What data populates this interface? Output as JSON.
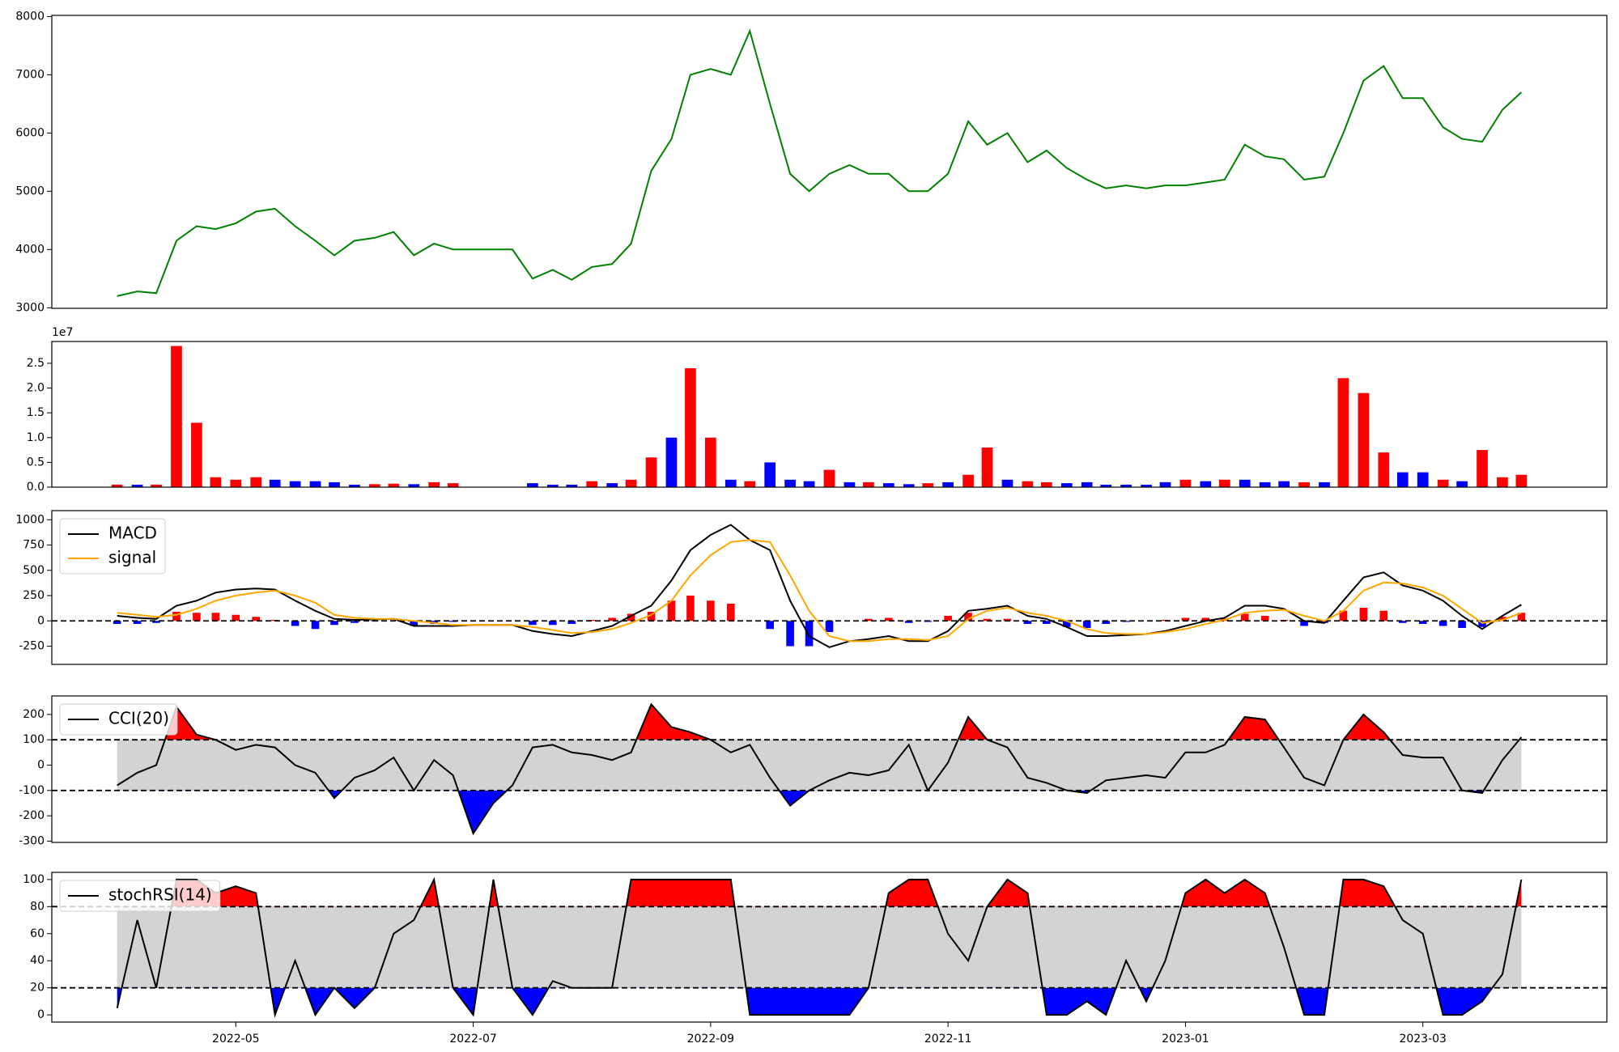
{
  "chart_data": [
    {
      "type": "line",
      "color": "green",
      "x": [
        3,
        3.17,
        3.33,
        3.5,
        3.67,
        3.83,
        4,
        4.17,
        4.33,
        4.5,
        4.67,
        4.83,
        5,
        5.17,
        5.33,
        5.5,
        5.67,
        5.83,
        6,
        6.17,
        6.33,
        6.5,
        6.67,
        6.83,
        7,
        7.17,
        7.33,
        7.5,
        7.67,
        7.83,
        8,
        8.17,
        8.33,
        8.5,
        8.67,
        8.83,
        9,
        9.17,
        9.33,
        9.5,
        9.67,
        9.83,
        10,
        10.17,
        10.33,
        10.5,
        10.67,
        10.83,
        11,
        11.17,
        11.33,
        11.5,
        11.67,
        11.83,
        12,
        12.17,
        12.33,
        12.5,
        12.67,
        12.83,
        13,
        13.17,
        13.33,
        13.5,
        13.67,
        13.83,
        14,
        14.17,
        14.33,
        14.5,
        14.67,
        14.83
      ],
      "values": [
        3200,
        3280,
        3250,
        4150,
        4400,
        4350,
        4450,
        4650,
        4700,
        4400,
        4150,
        3900,
        4150,
        4200,
        4300,
        3900,
        4100,
        4000,
        4000,
        4000,
        4000,
        3500,
        3650,
        3480,
        3700,
        3750,
        4100,
        5350,
        5900,
        7000,
        7100,
        7000,
        7750,
        6500,
        5300,
        5000,
        5300,
        5450,
        5300,
        5300,
        5000,
        5000,
        5300,
        6200,
        5800,
        6000,
        5500,
        5700,
        5400,
        5200,
        5050,
        5100,
        5050,
        5100,
        5100,
        5150,
        5200,
        5800,
        5600,
        5550,
        5200,
        5250,
        6000,
        6900,
        7150,
        6600,
        6600,
        6100,
        5900,
        5850,
        6400,
        6700
      ],
      "xlim": [
        2.45,
        15.55
      ],
      "ylim": [
        2990,
        8020
      ],
      "yticks": [
        3000,
        4000,
        5000,
        6000,
        7000,
        8000
      ]
    },
    {
      "type": "bar",
      "offset_label": "1e7",
      "x": [
        3,
        3.17,
        3.33,
        3.5,
        3.67,
        3.83,
        4,
        4.17,
        4.33,
        4.5,
        4.67,
        4.83,
        5,
        5.17,
        5.33,
        5.5,
        5.67,
        5.83,
        6,
        6.17,
        6.33,
        6.5,
        6.67,
        6.83,
        7,
        7.17,
        7.33,
        7.5,
        7.67,
        7.83,
        8,
        8.17,
        8.33,
        8.5,
        8.67,
        8.83,
        9,
        9.17,
        9.33,
        9.5,
        9.67,
        9.83,
        10,
        10.17,
        10.33,
        10.5,
        10.67,
        10.83,
        11,
        11.17,
        11.33,
        11.5,
        11.67,
        11.83,
        12,
        12.17,
        12.33,
        12.5,
        12.67,
        12.83,
        13,
        13.17,
        13.33,
        13.5,
        13.67,
        13.83,
        14,
        14.17,
        14.33,
        14.5,
        14.67,
        14.83
      ],
      "values": [
        0.05,
        0.05,
        0.05,
        2.85,
        1.3,
        0.2,
        0.15,
        0.2,
        0.15,
        0.12,
        0.12,
        0.1,
        0.05,
        0.06,
        0.07,
        0.06,
        0.1,
        0.08,
        null,
        null,
        null,
        0.08,
        0.05,
        0.05,
        0.12,
        0.08,
        0.15,
        0.6,
        1.0,
        2.4,
        1.0,
        0.15,
        0.12,
        0.5,
        0.15,
        0.12,
        0.35,
        0.1,
        0.1,
        0.08,
        0.06,
        0.08,
        0.1,
        0.25,
        0.8,
        0.15,
        0.12,
        0.1,
        0.08,
        0.1,
        0.05,
        0.05,
        0.05,
        0.1,
        0.15,
        0.12,
        0.15,
        0.15,
        0.1,
        0.12,
        0.1,
        0.1,
        2.2,
        1.9,
        0.7,
        0.3,
        0.3,
        0.15,
        0.12,
        0.75,
        0.2,
        0.25
      ],
      "colors": [
        "red",
        "blue",
        "red",
        "red",
        "red",
        "red",
        "red",
        "red",
        "blue",
        "blue",
        "blue",
        "blue",
        "blue",
        "red",
        "red",
        "blue",
        "red",
        "red",
        null,
        null,
        null,
        "blue",
        "blue",
        "blue",
        "red",
        "blue",
        "red",
        "red",
        "blue",
        "red",
        "red",
        "blue",
        "red",
        "blue",
        "blue",
        "blue",
        "red",
        "blue",
        "red",
        "blue",
        "blue",
        "red",
        "blue",
        "red",
        "red",
        "blue",
        "red",
        "red",
        "blue",
        "blue",
        "blue",
        "blue",
        "blue",
        "blue",
        "red",
        "blue",
        "red",
        "blue",
        "blue",
        "blue",
        "red",
        "blue",
        "red",
        "red",
        "red",
        "blue",
        "blue",
        "red",
        "blue",
        "red",
        "red",
        "red"
      ],
      "xlim": [
        2.45,
        15.55
      ],
      "ylim": [
        0,
        2.94
      ],
      "yticks": [
        {
          "value": 0,
          "label": "0.0"
        },
        {
          "value": 0.5,
          "label": "0.5"
        },
        {
          "value": 1,
          "label": "1.0"
        },
        {
          "value": 1.5,
          "label": "1.5"
        },
        {
          "value": 2,
          "label": "2.0"
        },
        {
          "value": 2.5,
          "label": "2.5"
        }
      ]
    },
    {
      "type": "line",
      "legend": "upper left",
      "hlines": [
        0
      ],
      "x": [
        3,
        3.17,
        3.33,
        3.5,
        3.67,
        3.83,
        4,
        4.17,
        4.33,
        4.5,
        4.67,
        4.83,
        5,
        5.17,
        5.33,
        5.5,
        5.67,
        5.83,
        6,
        6.17,
        6.33,
        6.5,
        6.67,
        6.83,
        7,
        7.17,
        7.33,
        7.5,
        7.67,
        7.83,
        8,
        8.17,
        8.33,
        8.5,
        8.67,
        8.83,
        9,
        9.17,
        9.33,
        9.5,
        9.67,
        9.83,
        10,
        10.17,
        10.33,
        10.5,
        10.67,
        10.83,
        11,
        11.17,
        11.33,
        11.5,
        11.67,
        11.83,
        12,
        12.17,
        12.33,
        12.5,
        12.67,
        12.83,
        13,
        13.17,
        13.33,
        13.5,
        13.67,
        13.83,
        14,
        14.17,
        14.33,
        14.5,
        14.67,
        14.83
      ],
      "series": [
        {
          "name": "MACD",
          "color": "black",
          "values": [
            50,
            30,
            20,
            150,
            200,
            280,
            310,
            320,
            310,
            200,
            100,
            20,
            10,
            15,
            20,
            -50,
            -50,
            -50,
            -40,
            -40,
            -40,
            -100,
            -130,
            -150,
            -100,
            -50,
            50,
            150,
            400,
            700,
            850,
            950,
            800,
            700,
            200,
            -150,
            -260,
            -200,
            -180,
            -150,
            -200,
            -200,
            -100,
            100,
            120,
            150,
            50,
            20,
            -60,
            -150,
            -150,
            -140,
            -130,
            -100,
            -50,
            0,
            30,
            150,
            150,
            120,
            0,
            -20,
            200,
            430,
            480,
            350,
            300,
            200,
            50,
            -80,
            50,
            160
          ]
        },
        {
          "name": "signal",
          "color": "orange",
          "values": [
            80,
            60,
            40,
            60,
            120,
            200,
            250,
            280,
            300,
            250,
            180,
            60,
            30,
            20,
            20,
            0,
            -20,
            -40,
            -40,
            -40,
            -40,
            -60,
            -90,
            -120,
            -110,
            -80,
            -20,
            60,
            200,
            450,
            650,
            780,
            800,
            780,
            450,
            100,
            -150,
            -200,
            -200,
            -180,
            -180,
            -190,
            -150,
            20,
            100,
            130,
            80,
            50,
            0,
            -80,
            -120,
            -130,
            -130,
            -110,
            -80,
            -30,
            10,
            80,
            100,
            110,
            50,
            0,
            100,
            300,
            380,
            370,
            330,
            250,
            120,
            -20,
            10,
            80
          ]
        }
      ],
      "bars": {
        "positive_color": "red",
        "negative_color": "blue",
        "values": [
          -30,
          -30,
          -20,
          90,
          80,
          80,
          60,
          40,
          10,
          -50,
          -80,
          -40,
          -20,
          -5,
          0,
          -50,
          -30,
          -10,
          0,
          0,
          0,
          -40,
          -40,
          -30,
          10,
          30,
          70,
          90,
          200,
          250,
          200,
          170,
          0,
          -80,
          -250,
          -250,
          -110,
          0,
          20,
          30,
          -20,
          -10,
          50,
          80,
          20,
          20,
          -30,
          -30,
          -60,
          -70,
          -30,
          -10,
          0,
          10,
          30,
          30,
          20,
          70,
          50,
          10,
          -50,
          -20,
          100,
          130,
          100,
          -20,
          -30,
          -50,
          -70,
          -60,
          40,
          80
        ]
      },
      "xlim": [
        2.45,
        15.55
      ],
      "ylim": [
        -430,
        1090
      ],
      "yticks": [
        -250,
        0,
        250,
        500,
        750,
        1000
      ]
    },
    {
      "type": "line",
      "legend": "upper left",
      "band": [
        -100,
        100
      ],
      "band_color": "lightgray",
      "upper_color": "red",
      "lower_color": "blue",
      "x": [
        3,
        3.17,
        3.33,
        3.5,
        3.67,
        3.83,
        4,
        4.17,
        4.33,
        4.5,
        4.67,
        4.83,
        5,
        5.17,
        5.33,
        5.5,
        5.67,
        5.83,
        6,
        6.17,
        6.33,
        6.5,
        6.67,
        6.83,
        7,
        7.17,
        7.33,
        7.5,
        7.67,
        7.83,
        8,
        8.17,
        8.33,
        8.5,
        8.67,
        8.83,
        9,
        9.17,
        9.33,
        9.5,
        9.67,
        9.83,
        10,
        10.17,
        10.33,
        10.5,
        10.67,
        10.83,
        11,
        11.17,
        11.33,
        11.5,
        11.67,
        11.83,
        12,
        12.17,
        12.33,
        12.5,
        12.67,
        12.83,
        13,
        13.17,
        13.33,
        13.5,
        13.67,
        13.83,
        14,
        14.17,
        14.33,
        14.5,
        14.67,
        14.83
      ],
      "series": [
        {
          "name": "CCI(20)",
          "color": "black",
          "values": [
            -80,
            -30,
            0,
            230,
            120,
            100,
            60,
            80,
            70,
            0,
            -30,
            -130,
            -50,
            -20,
            30,
            -100,
            20,
            -40,
            -270,
            -150,
            -80,
            70,
            80,
            50,
            40,
            20,
            50,
            240,
            150,
            130,
            100,
            50,
            80,
            -50,
            -160,
            -100,
            -60,
            -30,
            -40,
            -20,
            80,
            -100,
            10,
            190,
            100,
            70,
            -50,
            -70,
            -100,
            -110,
            -60,
            -50,
            -40,
            -50,
            50,
            50,
            80,
            190,
            180,
            70,
            -50,
            -80,
            100,
            200,
            130,
            40,
            30,
            30,
            -100,
            -110,
            20,
            110
          ]
        }
      ],
      "xlim": [
        2.45,
        15.55
      ],
      "ylim": [
        -305,
        273
      ],
      "yticks": [
        -300,
        -200,
        -100,
        0,
        100,
        200
      ]
    },
    {
      "type": "line",
      "legend": "upper left",
      "band": [
        20,
        80
      ],
      "band_color": "lightgray",
      "upper_color": "red",
      "lower_color": "blue",
      "x": [
        3,
        3.17,
        3.33,
        3.5,
        3.67,
        3.83,
        4,
        4.17,
        4.33,
        4.5,
        4.67,
        4.83,
        5,
        5.17,
        5.33,
        5.5,
        5.67,
        5.83,
        6,
        6.17,
        6.33,
        6.5,
        6.67,
        6.83,
        7,
        7.17,
        7.33,
        7.5,
        7.67,
        7.83,
        8,
        8.17,
        8.33,
        8.5,
        8.67,
        8.83,
        9,
        9.17,
        9.33,
        9.5,
        9.67,
        9.83,
        10,
        10.17,
        10.33,
        10.5,
        10.67,
        10.83,
        11,
        11.17,
        11.33,
        11.5,
        11.67,
        11.83,
        12,
        12.17,
        12.33,
        12.5,
        12.67,
        12.83,
        13,
        13.17,
        13.33,
        13.5,
        13.67,
        13.83,
        14,
        14.17,
        14.33,
        14.5,
        14.67,
        14.83
      ],
      "series": [
        {
          "name": "stochRSI(14)",
          "color": "black",
          "values": [
            5,
            70,
            20,
            100,
            100,
            90,
            95,
            90,
            0,
            40,
            0,
            20,
            5,
            20,
            60,
            70,
            100,
            20,
            0,
            100,
            20,
            0,
            25,
            20,
            20,
            20,
            100,
            100,
            100,
            100,
            100,
            100,
            0,
            0,
            0,
            0,
            0,
            0,
            20,
            90,
            100,
            100,
            60,
            40,
            80,
            100,
            90,
            0,
            0,
            10,
            0,
            40,
            10,
            40,
            90,
            100,
            90,
            100,
            90,
            50,
            0,
            0,
            100,
            100,
            95,
            70,
            60,
            0,
            0,
            10,
            30,
            100
          ]
        }
      ],
      "xlim": [
        2.45,
        15.55
      ],
      "ylim": [
        -5.3,
        105.3
      ],
      "yticks": [
        0,
        20,
        40,
        60,
        80,
        100
      ],
      "xticks": [
        {
          "value": 4,
          "label": "2022-05"
        },
        {
          "value": 6,
          "label": "2022-07"
        },
        {
          "value": 8,
          "label": "2022-09"
        },
        {
          "value": 10,
          "label": "2022-11"
        },
        {
          "value": 12,
          "label": "2023-01"
        },
        {
          "value": 14,
          "label": "2023-03"
        }
      ]
    }
  ]
}
